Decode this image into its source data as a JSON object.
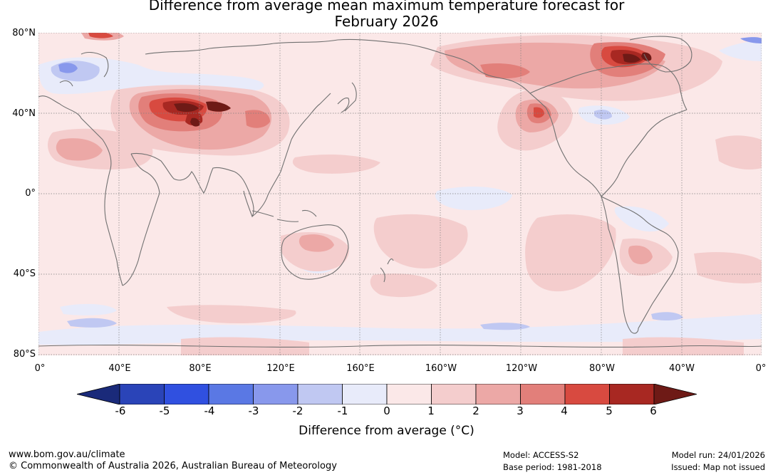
{
  "title": {
    "line1": "Difference from average mean maximum temperature forecast for",
    "line2": "February 2026"
  },
  "axes": {
    "lat_labels": [
      "80°N",
      "40°N",
      "0°",
      "40°S",
      "80°S"
    ],
    "lon_labels": [
      "0°",
      "40°E",
      "80°E",
      "120°E",
      "160°E",
      "160°W",
      "120°W",
      "80°W",
      "40°W",
      "0°"
    ]
  },
  "colorbar": {
    "ticks": [
      "-6",
      "-5",
      "-4",
      "-3",
      "-2",
      "-1",
      "0",
      "1",
      "2",
      "3",
      "4",
      "5",
      "6"
    ],
    "colors": [
      "#1a2a7a",
      "#2a44b8",
      "#3050e0",
      "#5a78e4",
      "#8898ec",
      "#c0c8f2",
      "#e8ebfa",
      "#fbe8e8",
      "#f4cdcd",
      "#eca8a6",
      "#e27f7a",
      "#d84a40",
      "#a82822",
      "#6e1a16"
    ],
    "label": "Difference from average (°C)"
  },
  "footer": {
    "website": "www.bom.gov.au/climate",
    "copyright": "© Commonwealth of Australia 2026, Australian Bureau of Meteorology",
    "model": "Model: ACCESS-S2",
    "base_period": "Base period: 1981-2018",
    "model_run": "Model run: 24/01/2026",
    "issued": "Issued: Map not issued"
  }
}
